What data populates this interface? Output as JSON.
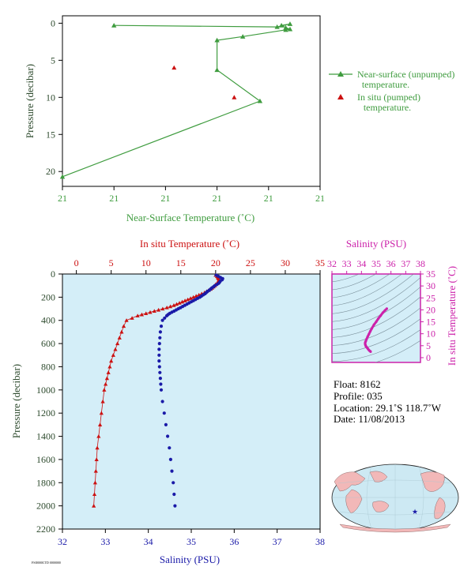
{
  "top_chart": {
    "xlabel": "Near-Surface Temperature (˚C)",
    "ylabel": "Pressure (decibar)",
    "x_tick_labels": [
      "21",
      "21",
      "21",
      "21",
      "21",
      "21"
    ],
    "y_tick_labels": [
      "0",
      "5",
      "10",
      "15",
      "20"
    ],
    "legend": {
      "near_surface_line1": "Near-surface (unpumped)",
      "near_surface_line2": "temperature.",
      "insitu_line1": "In situ (pumped)",
      "insitu_line2": "temperature."
    }
  },
  "main_chart": {
    "top_label": "In situ Temperature (˚C)",
    "bottom_label": "Salinity (PSU)",
    "ylabel": "Pressure (decibar)",
    "temp_tick_labels": [
      "0",
      "5",
      "10",
      "15",
      "20",
      "25",
      "30",
      "35"
    ],
    "sal_tick_labels": [
      "32",
      "33",
      "34",
      "35",
      "36",
      "37",
      "38"
    ],
    "y_tick_labels": [
      "0",
      "200",
      "400",
      "600",
      "800",
      "1000",
      "1200",
      "1400",
      "1600",
      "1800",
      "2000",
      "2200"
    ]
  },
  "ts_chart": {
    "top_label": "Salinity (PSU)",
    "right_label": "In situ Temperature (˚C)",
    "sal_tick_labels": [
      "32",
      "33",
      "34",
      "35",
      "36",
      "37",
      "38"
    ],
    "temp_tick_labels": [
      "0",
      "5",
      "10",
      "15",
      "20",
      "25",
      "30",
      "35"
    ]
  },
  "info": {
    "float": "Float:  8162",
    "profile": "Profile:  035",
    "location": "Location:  29.1˚S  118.7˚W",
    "date": "Date:  11/08/2013"
  },
  "footer_tag": "FSI0000CTD 0000000",
  "colors": {
    "green": "#3f9c3f",
    "red": "#cc1111",
    "blue": "#1a1aa8",
    "magenta": "#cc22aa",
    "plot_bg": "#d4eef8"
  },
  "chart_data": [
    {
      "type": "line",
      "name": "top-near-surface",
      "series": [
        {
          "name": "Near-surface (unpumped) temperature.",
          "marker": "triangle",
          "x": [
            20.88,
            21.07,
            21.085,
            21.075,
            21.08,
            21.085,
            21.08,
            21.03,
            21.0,
            21.0,
            21.05,
            20.82
          ],
          "y": [
            0.3,
            0.5,
            0.1,
            0.3,
            0.6,
            0.8,
            0.9,
            1.8,
            2.3,
            6.3,
            10.5,
            20.7
          ]
        },
        {
          "name": "In situ (pumped) temperature.",
          "marker": "triangle",
          "x": [
            20.95,
            21.02
          ],
          "y": [
            6.0,
            10.0
          ]
        }
      ],
      "xlim": [
        20.82,
        21.12
      ],
      "ylim": [
        22,
        -1
      ]
    },
    {
      "type": "scatter",
      "name": "main-profile",
      "series": [
        {
          "name": "In situ Temperature",
          "marker": "triangle",
          "pressure": [
            10,
            20,
            30,
            40,
            50,
            60,
            70,
            80,
            90,
            100,
            110,
            120,
            130,
            140,
            150,
            160,
            170,
            180,
            190,
            200,
            210,
            220,
            230,
            240,
            250,
            260,
            270,
            280,
            290,
            300,
            310,
            320,
            330,
            340,
            350,
            360,
            380,
            400,
            450,
            500,
            550,
            600,
            650,
            700,
            750,
            800,
            850,
            900,
            950,
            1000,
            1100,
            1200,
            1300,
            1400,
            1500,
            1600,
            1700,
            1800,
            1900,
            2000
          ],
          "values": [
            20.0,
            20.2,
            20.3,
            20.4,
            20.5,
            20.4,
            20.3,
            20.2,
            20.0,
            19.9,
            19.7,
            19.5,
            19.3,
            19.0,
            18.7,
            18.4,
            18.0,
            17.6,
            17.2,
            16.8,
            16.4,
            16.0,
            15.6,
            15.2,
            14.8,
            14.4,
            14.0,
            13.5,
            13.0,
            12.4,
            11.8,
            11.2,
            10.6,
            10.0,
            9.4,
            8.8,
            8.0,
            7.2,
            6.8,
            6.5,
            6.2,
            5.9,
            5.6,
            5.3,
            5.0,
            4.8,
            4.6,
            4.4,
            4.2,
            4.0,
            3.8,
            3.6,
            3.4,
            3.2,
            3.0,
            2.9,
            2.8,
            2.7,
            2.6,
            2.5
          ]
        },
        {
          "name": "Salinity",
          "marker": "circle",
          "pressure": [
            10,
            20,
            30,
            40,
            50,
            60,
            70,
            80,
            90,
            100,
            110,
            120,
            130,
            140,
            150,
            160,
            170,
            180,
            190,
            200,
            210,
            220,
            230,
            240,
            250,
            260,
            270,
            280,
            290,
            300,
            310,
            320,
            330,
            340,
            350,
            360,
            380,
            400,
            450,
            500,
            550,
            600,
            650,
            700,
            750,
            800,
            850,
            900,
            950,
            1000,
            1100,
            1200,
            1300,
            1400,
            1500,
            1600,
            1700,
            1800,
            1900,
            2000
          ],
          "values": [
            35.58,
            35.63,
            35.68,
            35.73,
            35.72,
            35.68,
            35.66,
            35.64,
            35.6,
            35.55,
            35.52,
            35.48,
            35.45,
            35.42,
            35.38,
            35.35,
            35.32,
            35.28,
            35.24,
            35.2,
            35.15,
            35.1,
            35.05,
            35.0,
            34.95,
            34.9,
            34.85,
            34.8,
            34.75,
            34.7,
            34.65,
            34.6,
            34.55,
            34.5,
            34.46,
            34.43,
            34.38,
            34.33,
            34.3,
            34.28,
            34.27,
            34.26,
            34.25,
            34.25,
            34.25,
            34.26,
            34.27,
            34.28,
            34.29,
            34.3,
            34.33,
            34.37,
            34.41,
            34.45,
            34.49,
            34.52,
            34.55,
            34.58,
            34.6,
            34.62
          ]
        }
      ],
      "temp_lim": [
        -2,
        35
      ],
      "sal_lim": [
        32,
        38
      ],
      "ylim": [
        2200,
        0
      ]
    },
    {
      "type": "scatter",
      "name": "ts-diagram",
      "series": [
        {
          "name": "T-S",
          "sal": [
            35.72,
            35.6,
            35.45,
            35.3,
            35.15,
            35.0,
            34.85,
            34.7,
            34.6,
            34.5,
            34.42,
            34.35,
            34.3,
            34.27,
            34.25,
            34.25,
            34.27,
            34.3,
            34.35,
            34.4,
            34.45,
            34.5,
            34.55,
            34.6,
            34.62
          ],
          "temp": [
            20.5,
            19.8,
            18.8,
            17.6,
            16.4,
            15.0,
            13.8,
            12.2,
            11.0,
            9.8,
            8.8,
            7.8,
            7.0,
            6.6,
            6.2,
            5.8,
            5.3,
            4.8,
            4.4,
            4.0,
            3.6,
            3.2,
            2.9,
            2.7,
            2.5
          ]
        }
      ],
      "sal_lim": [
        32,
        38
      ],
      "temp_lim": [
        -2,
        35
      ]
    }
  ]
}
